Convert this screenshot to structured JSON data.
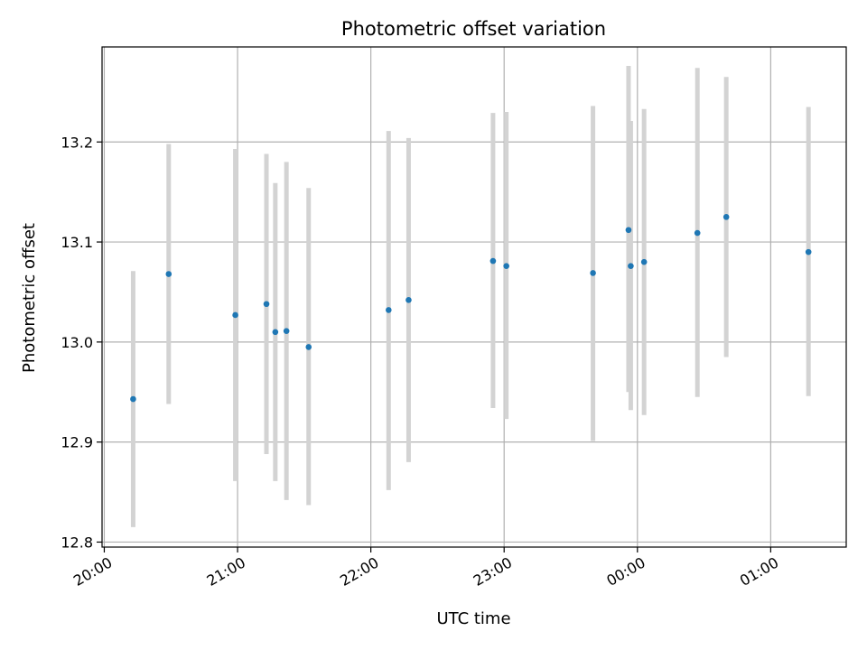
{
  "chart_data": {
    "type": "scatter",
    "title": "Photometric offset variation",
    "xlabel": "UTC time",
    "ylabel": "Photometric offset",
    "xlim": [
      "19:59",
      "01:34"
    ],
    "ylim": [
      12.795,
      13.295
    ],
    "xticks": [
      "20:00",
      "21:00",
      "22:00",
      "23:00",
      "00:00",
      "01:00"
    ],
    "yticks": [
      12.8,
      12.9,
      13.0,
      13.1,
      13.2
    ],
    "grid": true,
    "series": [
      {
        "points": [
          {
            "x": "20:13",
            "y": 12.943,
            "err_low": 12.815,
            "err_high": 13.071
          },
          {
            "x": "20:29",
            "y": 13.068,
            "err_low": 12.938,
            "err_high": 13.198
          },
          {
            "x": "20:59",
            "y": 13.027,
            "err_low": 12.861,
            "err_high": 13.193
          },
          {
            "x": "21:13",
            "y": 13.038,
            "err_low": 12.888,
            "err_high": 13.188
          },
          {
            "x": "21:17",
            "y": 13.01,
            "err_low": 12.861,
            "err_high": 13.159
          },
          {
            "x": "21:22",
            "y": 13.011,
            "err_low": 12.842,
            "err_high": 13.18
          },
          {
            "x": "21:32",
            "y": 12.995,
            "err_low": 12.837,
            "err_high": 13.154
          },
          {
            "x": "22:08",
            "y": 13.032,
            "err_low": 12.852,
            "err_high": 13.211
          },
          {
            "x": "22:17",
            "y": 13.042,
            "err_low": 12.88,
            "err_high": 13.204
          },
          {
            "x": "22:55",
            "y": 13.081,
            "err_low": 12.934,
            "err_high": 13.229
          },
          {
            "x": "23:01",
            "y": 13.076,
            "err_low": 12.923,
            "err_high": 13.23
          },
          {
            "x": "23:40",
            "y": 13.069,
            "err_low": 12.901,
            "err_high": 13.236
          },
          {
            "x": "23:56",
            "y": 13.112,
            "err_low": 12.95,
            "err_high": 13.276
          },
          {
            "x": "23:57",
            "y": 13.076,
            "err_low": 12.932,
            "err_high": 13.221
          },
          {
            "x": "00:03",
            "y": 13.08,
            "err_low": 12.927,
            "err_high": 13.233
          },
          {
            "x": "00:27",
            "y": 13.109,
            "err_low": 12.945,
            "err_high": 13.274
          },
          {
            "x": "00:40",
            "y": 13.125,
            "err_low": 12.985,
            "err_high": 13.265
          },
          {
            "x": "01:17",
            "y": 13.09,
            "err_low": 12.946,
            "err_high": 13.235
          }
        ]
      }
    ],
    "colors": {
      "marker": "#1f77b4",
      "errorbar": "#d3d3d3",
      "grid": "#b0b0b0",
      "axes": "#000000"
    }
  }
}
